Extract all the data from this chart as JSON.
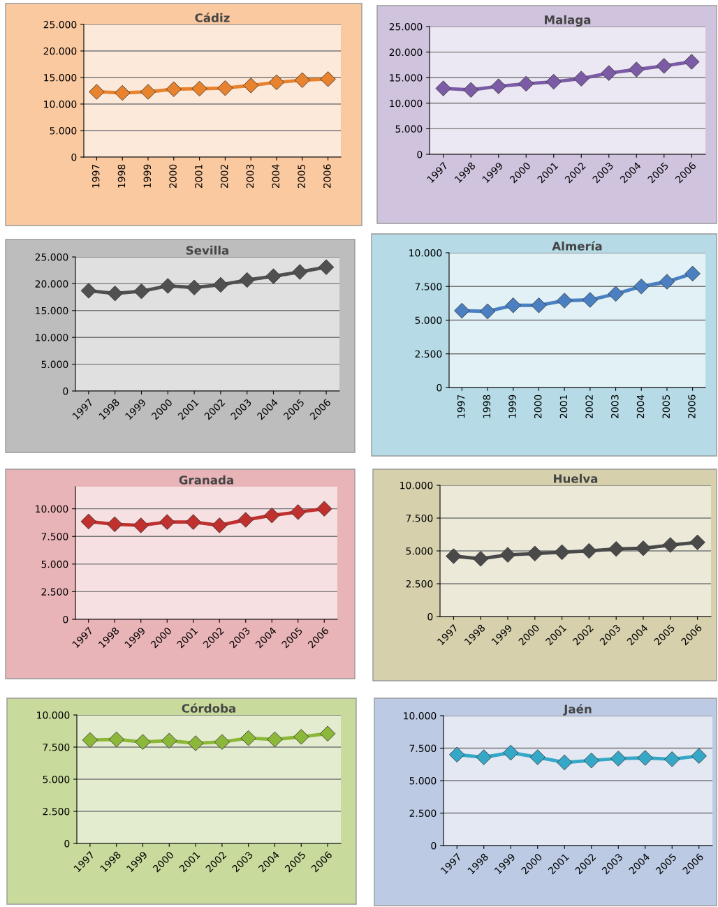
{
  "chart_data": [
    {
      "type": "line",
      "title": "Cádiz",
      "categories": [
        "1997",
        "1998",
        "1999",
        "2000",
        "2001",
        "2002",
        "2003",
        "2004",
        "2005",
        "2006"
      ],
      "series": [
        {
          "color": "#e8822c",
          "values": [
            12300,
            12100,
            12300,
            12800,
            12900,
            13000,
            13500,
            14100,
            14500,
            14700
          ]
        }
      ],
      "ylim": [
        0,
        25000
      ],
      "yticks": [
        0,
        {
          "value": 5000,
          "label": "5.000"
        },
        {
          "value": 10000,
          "label": "10.000"
        },
        {
          "value": 15000,
          "label": "15.000"
        },
        {
          "value": 20000,
          "label": "20.000"
        },
        {
          "value": 25000,
          "label": "25.000"
        }
      ],
      "grid": "y",
      "marker": "diamond"
    },
    {
      "type": "line",
      "title": "Malaga",
      "categories": [
        "1997",
        "1998",
        "1999",
        "2000",
        "2001",
        "2002",
        "2003",
        "2004",
        "2005",
        "2006"
      ],
      "series": [
        {
          "color": "#7b5ba6",
          "values": [
            12900,
            12600,
            13300,
            13800,
            14200,
            14800,
            15900,
            16600,
            17300,
            18100
          ]
        }
      ],
      "ylim": [
        0,
        25000
      ],
      "yticks": [
        0,
        {
          "value": 5000,
          "label": "5.000"
        },
        {
          "value": 10000,
          "label": "10.000"
        },
        {
          "value": 15000,
          "label": "15.000"
        },
        {
          "value": 20000,
          "label": "20.000"
        },
        {
          "value": 25000,
          "label": "25.000"
        }
      ],
      "grid": "y",
      "marker": "diamond"
    },
    {
      "type": "line",
      "title": "Sevilla",
      "categories": [
        "1997",
        "1998",
        "1999",
        "2000",
        "2001",
        "2002",
        "2003",
        "2004",
        "2005",
        "2006"
      ],
      "series": [
        {
          "color": "#505050",
          "values": [
            18700,
            18200,
            18600,
            19600,
            19300,
            19800,
            20700,
            21400,
            22200,
            23100
          ]
        }
      ],
      "ylim": [
        0,
        25000
      ],
      "yticks": [
        0,
        {
          "value": 5000,
          "label": "5.000"
        },
        {
          "value": 10000,
          "label": "10.000"
        },
        {
          "value": 15000,
          "label": "15.000"
        },
        {
          "value": 20000,
          "label": "20.000"
        },
        {
          "value": 25000,
          "label": "25.000"
        }
      ],
      "grid": "y",
      "marker": "diamond"
    },
    {
      "type": "line",
      "title": "Almería",
      "categories": [
        "1997",
        "1998",
        "1999",
        "2000",
        "2001",
        "2002",
        "2003",
        "2004",
        "2005",
        "2006"
      ],
      "series": [
        {
          "color": "#4a7fc1",
          "values": [
            5700,
            5650,
            6100,
            6100,
            6450,
            6500,
            6950,
            7500,
            7850,
            8450
          ]
        }
      ],
      "ylim": [
        0,
        10000
      ],
      "yticks": [
        0,
        {
          "value": 2500,
          "label": "2.500"
        },
        {
          "value": 5000,
          "label": "5.000"
        },
        {
          "value": 7500,
          "label": "7.500"
        },
        {
          "value": 10000,
          "label": "10.000"
        }
      ],
      "grid": "y",
      "marker": "diamond"
    },
    {
      "type": "line",
      "title": "Granada",
      "categories": [
        "1997",
        "1998",
        "1999",
        "2000",
        "2001",
        "2002",
        "2003",
        "2004",
        "2005",
        "2006"
      ],
      "series": [
        {
          "color": "#c0302e",
          "values": [
            8850,
            8600,
            8500,
            8800,
            8800,
            8500,
            9000,
            9400,
            9700,
            10000
          ]
        }
      ],
      "ylim": [
        0,
        12000
      ],
      "yticks": [
        0,
        {
          "value": 2500,
          "label": "2.500"
        },
        {
          "value": 5000,
          "label": "5.000"
        },
        {
          "value": 7500,
          "label": "7.500"
        },
        {
          "value": 10000,
          "label": "10.000"
        }
      ],
      "grid": "y",
      "marker": "diamond"
    },
    {
      "type": "line",
      "title": "Huelva",
      "categories": [
        "1997",
        "1998",
        "1999",
        "2000",
        "2001",
        "2002",
        "2003",
        "2004",
        "2005",
        "2006"
      ],
      "series": [
        {
          "color": "#4a4a4a",
          "values": [
            4600,
            4400,
            4700,
            4800,
            4900,
            5000,
            5150,
            5200,
            5450,
            5650
          ]
        }
      ],
      "ylim": [
        0,
        10000
      ],
      "yticks": [
        0,
        {
          "value": 2500,
          "label": "2.500"
        },
        {
          "value": 5000,
          "label": "5.000"
        },
        {
          "value": 7500,
          "label": "7.500"
        },
        {
          "value": 10000,
          "label": "10.000"
        }
      ],
      "grid": "y",
      "marker": "diamond"
    },
    {
      "type": "line",
      "title": "Córdoba",
      "categories": [
        "1997",
        "1998",
        "1999",
        "2000",
        "2001",
        "2002",
        "2003",
        "2004",
        "2005",
        "2006"
      ],
      "series": [
        {
          "color": "#8cb83a",
          "values": [
            8050,
            8100,
            7900,
            8000,
            7800,
            7900,
            8200,
            8100,
            8300,
            8550
          ]
        }
      ],
      "ylim": [
        0,
        10000
      ],
      "yticks": [
        0,
        {
          "value": 2500,
          "label": "2.500"
        },
        {
          "value": 5000,
          "label": "5.000"
        },
        {
          "value": 7500,
          "label": "7.500"
        },
        {
          "value": 10000,
          "label": "10.000"
        }
      ],
      "grid": "y",
      "marker": "diamond"
    },
    {
      "type": "line",
      "title": "Jaén",
      "categories": [
        "1997",
        "1998",
        "1999",
        "2000",
        "2001",
        "2002",
        "2003",
        "2004",
        "2005",
        "2006"
      ],
      "series": [
        {
          "color": "#35a8c8",
          "values": [
            7000,
            6800,
            7150,
            6800,
            6400,
            6550,
            6700,
            6750,
            6650,
            6900
          ]
        }
      ],
      "ylim": [
        0,
        10000
      ],
      "yticks": [
        0,
        {
          "value": 2500,
          "label": "2.500"
        },
        {
          "value": 5000,
          "label": "5.000"
        },
        {
          "value": 7500,
          "label": "7.500"
        },
        {
          "value": 10000,
          "label": "10.000"
        }
      ],
      "grid": "y",
      "marker": "diamond"
    }
  ]
}
